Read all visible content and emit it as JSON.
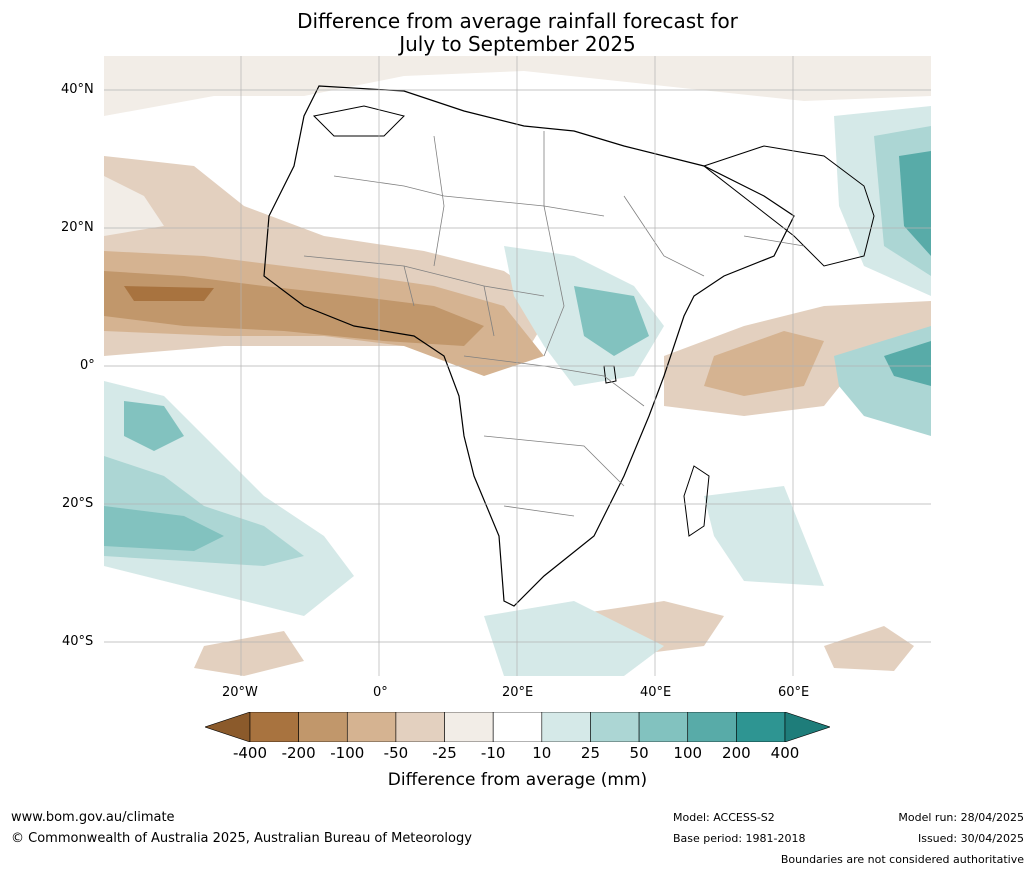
{
  "title_line1": "Difference from average rainfall forecast for",
  "title_line2": "July to September 2025",
  "lat_ticks": [
    "40°N",
    "20°N",
    "0°",
    "20°S",
    "40°S"
  ],
  "lon_ticks": [
    "20°W",
    "0°",
    "20°E",
    "40°E",
    "60°E"
  ],
  "legend": {
    "title": "Difference from average (mm)",
    "labels": [
      "-400",
      "-200",
      "-100",
      "-50",
      "-25",
      "-10",
      "10",
      "25",
      "50",
      "100",
      "200",
      "400"
    ],
    "colors": [
      "#a8733f",
      "#c1976b",
      "#d5b391",
      "#e3d0bf",
      "#f2ede7",
      "#ffffff",
      "#d5e9e8",
      "#acd6d4",
      "#82c2bf",
      "#58aba8",
      "#2e9592"
    ],
    "extend_low_color": "#8b5a2b",
    "extend_high_color": "#1e7d7a"
  },
  "footer": {
    "website": "www.bom.gov.au/climate",
    "copyright": "© Commonwealth of Australia 2025, Australian Bureau of Meteorology",
    "model": "Model: ACCESS-S2",
    "base_period": "Base period: 1981-2018",
    "model_run": "Model run: 28/04/2025",
    "issued": "Issued: 30/04/2025",
    "disclaimer": "Boundaries are not considered authoritative"
  }
}
